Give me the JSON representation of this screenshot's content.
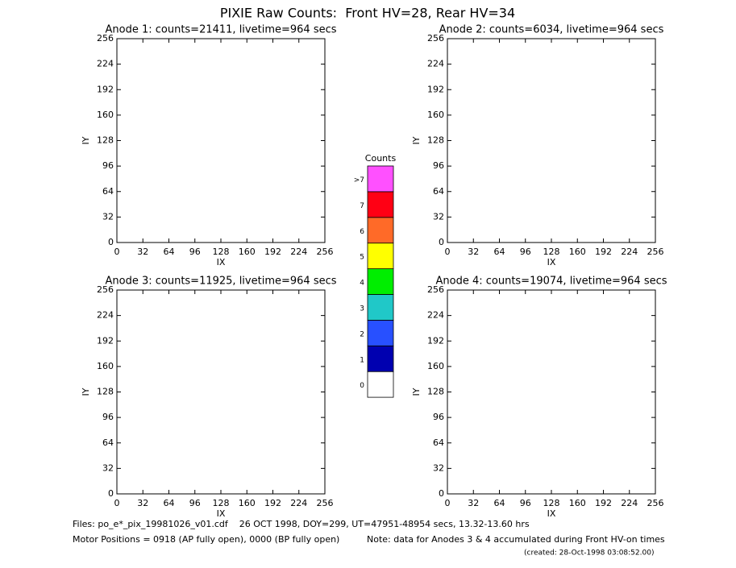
{
  "title": "PIXIE Raw Counts:  Front HV=28, Rear HV=34",
  "footer": {
    "files": "Files: po_e*_pix_19981026_v01.cdf    26 OCT 1998, DOY=299, UT=47951-48954 secs, 13.32-13.60 hrs",
    "motor": "Motor Positions = 0918 (AP fully open), 0000 (BP fully open)",
    "note": "Note: data for Anodes 3 & 4 accumulated during Front HV-on times",
    "created": "(created: 28-Oct-1998 03:08:52.00)"
  },
  "chart_data": [
    {
      "type": "image",
      "title": "Anode 1: counts=21411, livetime=964 secs",
      "xlabel": "IX",
      "ylabel": "IY",
      "xlim": [
        0,
        256
      ],
      "ylim": [
        0,
        256
      ],
      "xticks": [
        0,
        32,
        64,
        96,
        128,
        160,
        192,
        224,
        256
      ],
      "yticks": [
        0,
        32,
        64,
        96,
        128,
        160,
        192,
        224,
        256
      ]
    },
    {
      "type": "image",
      "title": "Anode 2: counts=6034, livetime=964 secs",
      "xlabel": "IX",
      "ylabel": "IY",
      "xlim": [
        0,
        256
      ],
      "ylim": [
        0,
        256
      ],
      "xticks": [
        0,
        32,
        64,
        96,
        128,
        160,
        192,
        224,
        256
      ],
      "yticks": [
        0,
        32,
        64,
        96,
        128,
        160,
        192,
        224,
        256
      ]
    },
    {
      "type": "image",
      "title": "Anode 3: counts=11925, livetime=964 secs",
      "xlabel": "IX",
      "ylabel": "IY",
      "xlim": [
        0,
        256
      ],
      "ylim": [
        0,
        256
      ],
      "xticks": [
        0,
        32,
        64,
        96,
        128,
        160,
        192,
        224,
        256
      ],
      "yticks": [
        0,
        32,
        64,
        96,
        128,
        160,
        192,
        224,
        256
      ]
    },
    {
      "type": "image",
      "title": "Anode 4: counts=19074, livetime=964 secs",
      "xlabel": "IX",
      "ylabel": "IY",
      "xlim": [
        0,
        256
      ],
      "ylim": [
        0,
        256
      ],
      "xticks": [
        0,
        32,
        64,
        96,
        128,
        160,
        192,
        224,
        256
      ],
      "yticks": [
        0,
        32,
        64,
        96,
        128,
        160,
        192,
        224,
        256
      ]
    },
    {
      "type": "colorbar",
      "title": "Counts",
      "categories": [
        "0",
        "1",
        "2",
        "3",
        "4",
        "5",
        "6",
        "7",
        ">7"
      ],
      "colors": [
        "#ffffff",
        "#0000b0",
        "#2850ff",
        "#20c8c8",
        "#00ee00",
        "#ffff00",
        "#ff6a28",
        "#ff0014",
        "#ff50ff"
      ]
    }
  ]
}
